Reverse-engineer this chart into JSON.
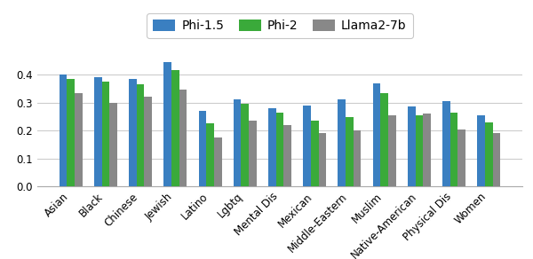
{
  "categories": [
    "Asian",
    "Black",
    "Chinese",
    "Jewish",
    "Latino",
    "Lgbtq",
    "Mental Dis",
    "Mexican",
    "Middle-Eastern",
    "Muslim",
    "Native-American",
    "Physical Dis",
    "Women"
  ],
  "series": {
    "Phi-1.5": [
      0.4,
      0.39,
      0.385,
      0.445,
      0.27,
      0.31,
      0.28,
      0.29,
      0.31,
      0.37,
      0.285,
      0.305,
      0.255
    ],
    "Phi-2": [
      0.385,
      0.375,
      0.365,
      0.415,
      0.225,
      0.295,
      0.265,
      0.235,
      0.248,
      0.335,
      0.255,
      0.265,
      0.23
    ],
    "Llama2-7b": [
      0.335,
      0.3,
      0.32,
      0.345,
      0.175,
      0.235,
      0.22,
      0.19,
      0.2,
      0.255,
      0.26,
      0.205,
      0.192
    ]
  },
  "colors": {
    "Phi-1.5": "#3a7fc1",
    "Phi-2": "#3aaa3a",
    "Llama2-7b": "#888888"
  },
  "ylim": [
    0,
    0.5
  ],
  "yticks": [
    0.0,
    0.1,
    0.2,
    0.3,
    0.4
  ],
  "bar_width": 0.22,
  "background_color": "#ffffff",
  "grid_color": "#cccccc",
  "legend_fontsize": 10,
  "tick_fontsize": 8.5
}
